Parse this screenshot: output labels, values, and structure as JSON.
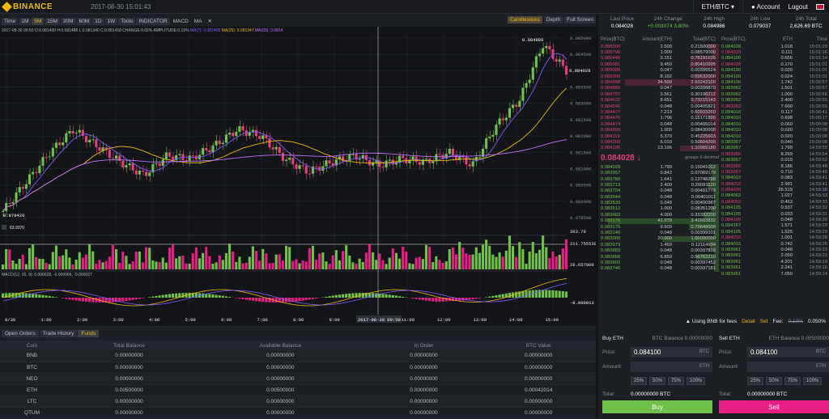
{
  "header": {
    "brand": "BINANCE",
    "clock": "2017-08-30 15:01:43",
    "pair": "ETH/BTC",
    "account": "Account",
    "logout": "Logout"
  },
  "toolbar": {
    "items": [
      "Time",
      "1M",
      "5M",
      "15M",
      "30M",
      "60M",
      "1D",
      "1W",
      "Tools",
      "INDICATOR",
      "MACD",
      "MA",
      "✕"
    ],
    "active": "5M",
    "right": [
      "Candlesticks",
      "Depth",
      "Full Screen"
    ]
  },
  "chart": {
    "ohlc_line": "2017-08-30 09:50  O:0.081400 H:0.081486 L:0.081340 C:0.081418 CHANGE:0.02% AMPLITUDE:0.15%",
    "ma7": "MA(7): 0.081408",
    "ma25": "MA(25): 0.081347",
    "ma99": "MA(99): 0.0814",
    "price_ticks": [
      "0.085000",
      "0.084500",
      "0.084000",
      "0.083500",
      "0.083000",
      "0.082500",
      "0.082000",
      "0.081500",
      "0.081000",
      "0.080500",
      "0.080000",
      "0.079500"
    ],
    "high_label": "0.084986",
    "low_label": "0.079420",
    "current_label": "0.084028",
    "vol_ticks": [
      "393.79",
      "211.755538",
      "26.657000"
    ],
    "vol_left": "63.9370",
    "macd_label": "MACD(12, 26, 9): 0.000028, -0.000065, -0.000037",
    "macd_tick": "-0.000013",
    "time_ticks": [
      "8/30",
      "1:00",
      "2:00",
      "3:00",
      "4:00",
      "5:00",
      "6:00",
      "7:00",
      "8:00",
      "9:00",
      "10:00",
      "11:00",
      "12:00",
      "13:00",
      "14:00",
      "15:00"
    ],
    "crosshair_time": "2017-08-30 09:50"
  },
  "chart_data": {
    "type": "candlestick",
    "x_range": [
      "2017-08-29 23:30",
      "2017-08-30 15:05"
    ],
    "ylim": [
      0.0794,
      0.0851
    ],
    "close_approx": [
      0.0797,
      0.0806,
      0.0815,
      0.0822,
      0.0817,
      0.0812,
      0.0808,
      0.0814,
      0.0813,
      0.0817,
      0.0822,
      0.082,
      0.0813,
      0.0809,
      0.0812,
      0.0814,
      0.0811,
      0.0813,
      0.0812,
      0.0815,
      0.0811,
      0.0823,
      0.0831,
      0.0848,
      0.084
    ]
  },
  "bottom_tabs": [
    "Open Orders",
    "Trade History",
    "Funds"
  ],
  "funds": {
    "headers": [
      "Coin",
      "Total Balance",
      "Available Balance",
      "In Order",
      "BTC Value"
    ],
    "rows": [
      [
        "BNB",
        "0.00000000",
        "0.00000000",
        "0.00000000",
        "0.00000000"
      ],
      [
        "BTC",
        "0.00000000",
        "0.00000000",
        "0.00000000",
        "0.00000000"
      ],
      [
        "NEO",
        "0.00000000",
        "0.00000000",
        "0.00000000",
        "0.00000000"
      ],
      [
        "ETH",
        "0.00500000",
        "0.00500000",
        "0.00000000",
        "0.00042014"
      ],
      [
        "LTC",
        "0.00000000",
        "0.00000000",
        "0.00000000",
        "0.00000000"
      ],
      [
        "QTUM",
        "0.00000000",
        "0.00000000",
        "0.00000000",
        "0.00000000"
      ]
    ]
  },
  "ticker": [
    {
      "l": "Last Price",
      "v": "0.084028"
    },
    {
      "l": "24h Change",
      "v": "+0.003074 3.80%"
    },
    {
      "l": "24h High",
      "v": "0.084986"
    },
    {
      "l": "24h Low",
      "v": "0.079037"
    },
    {
      "l": "24h Total",
      "v": "2,626.69 BTC"
    }
  ],
  "orderbook": {
    "headers": [
      "Price(BTC)",
      "Amount(ETH)",
      "Total(BTC)"
    ],
    "asks": [
      [
        "0.086000",
        "2.500",
        "0.21500000"
      ],
      [
        "0.085790",
        "1.000",
        "0.08579000"
      ],
      [
        "0.085446",
        "9.151",
        "0.78191635"
      ],
      [
        "0.085081",
        "9.450",
        "0.80410995"
      ],
      [
        "0.085005",
        "0.047",
        "0.00399524"
      ],
      [
        "0.085000",
        "8.192",
        "0.69632000"
      ],
      [
        "0.084998",
        "34.500",
        "2.93243100"
      ],
      [
        "0.084866",
        "0.047",
        "0.00398870"
      ],
      [
        "0.084797",
        "3.561",
        "0.30196212"
      ],
      [
        "0.084632",
        "8.651",
        "0.73215143"
      ],
      [
        "0.084546",
        "0.048",
        "0.00405821"
      ],
      [
        "0.084477",
        "7.213",
        "0.60933260"
      ],
      [
        "0.084476",
        "1.796",
        "0.15171890"
      ],
      [
        "0.084474",
        "0.048",
        "0.00405014"
      ],
      [
        "0.084300",
        "1.000",
        "0.08430000"
      ],
      [
        "0.084119",
        "5.370",
        "0.45225603"
      ],
      [
        "0.084200",
        "6.010",
        "0.50604200"
      ],
      [
        "0.084106",
        "13.196",
        "1.10989180"
      ]
    ],
    "last": "0.084028 ↓",
    "groups": "groups 6 decimal",
    "bids": [
      [
        "0.084028",
        "1.790",
        "0.15041012"
      ],
      [
        "0.083957",
        "0.842",
        "0.07069179"
      ],
      [
        "0.083780",
        "1.641",
        "0.13748298"
      ],
      [
        "0.083713",
        "2.400",
        "0.20091120"
      ],
      [
        "0.083704",
        "0.048",
        "0.00401779"
      ],
      [
        "0.083544",
        "0.048",
        "0.00401011"
      ],
      [
        "0.083539",
        "0.048",
        "0.00400987"
      ],
      [
        "0.083512",
        "1.000",
        "0.08351200"
      ],
      [
        "0.083483",
        "4.000",
        "0.33393200"
      ],
      [
        "0.083176",
        "41.070",
        "3.41603832"
      ],
      [
        "0.083175",
        "9.600",
        "0.79848000"
      ],
      [
        "0.083146",
        "0.048",
        "0.00399101"
      ],
      [
        "0.083000",
        "20.000",
        "1.66000000"
      ],
      [
        "0.082979",
        "1.460",
        "0.12114934"
      ],
      [
        "0.082883",
        "0.048",
        "0.00397838"
      ],
      [
        "0.082866",
        "6.850",
        "0.56763210"
      ],
      [
        "0.082802",
        "0.048",
        "0.00397452"
      ],
      [
        "0.082746",
        "0.048",
        "0.00397181"
      ]
    ]
  },
  "trades": {
    "headers": [
      "Price(BTC)",
      "ETH",
      "Time"
    ],
    "rows": [
      [
        "0.084028",
        "1.018",
        "15:01:29"
      ],
      [
        "0.084028",
        "0.111",
        "15:01:16"
      ],
      [
        "0.084100",
        "0.656",
        "15:01:14"
      ],
      [
        "0.084028",
        "0.170",
        "15:01:01"
      ],
      [
        "0.084100",
        "0.020",
        "15:01:01"
      ],
      [
        "0.084100",
        "0.024",
        "15:01:01"
      ],
      [
        "0.084100",
        "1.742",
        "15:00:57"
      ],
      [
        "0.083962",
        "1.501",
        "15:00:57"
      ],
      [
        "0.083962",
        "1.000",
        "15:00:56"
      ],
      [
        "0.083962",
        "2.400",
        "15:00:55"
      ],
      [
        "0.083962",
        "7.600",
        "15:00:55"
      ],
      [
        "0.084010",
        "0.117",
        "15:00:41"
      ],
      [
        "0.084010",
        "0.698",
        "15:00:17"
      ],
      [
        "0.084010",
        "0.060",
        "15:00:08"
      ],
      [
        "0.084010",
        "0.020",
        "15:00:08"
      ],
      [
        "0.084010",
        "0.020",
        "15:00:08"
      ],
      [
        "0.083957",
        "0.040",
        "15:00:08"
      ],
      [
        "0.083957",
        "1.799",
        "14:59:55"
      ],
      [
        "0.083956",
        "8.269",
        "14:59:54"
      ],
      [
        "0.083957",
        "0.019",
        "14:59:52"
      ],
      [
        "0.083956",
        "8.186",
        "14:59:48"
      ],
      [
        "0.083957",
        "0.710",
        "14:59:45"
      ],
      [
        "0.084010",
        "0.083",
        "14:59:41"
      ],
      [
        "0.084010",
        "2.991",
        "14:59:41"
      ],
      [
        "0.084030",
        "26.519",
        "14:59:38"
      ],
      [
        "0.084052",
        "1.027",
        "14:59:33"
      ],
      [
        "0.084052",
        "0.463",
        "14:59:33"
      ],
      [
        "0.084105",
        "0.537",
        "14:59:32"
      ],
      [
        "0.084105",
        "0.033",
        "14:59:31"
      ],
      [
        "0.084105",
        "0.048",
        "14:59:30"
      ],
      [
        "0.084167",
        "1.571",
        "14:59:29"
      ],
      [
        "0.084105",
        "1.525",
        "14:59:29"
      ],
      [
        "0.084010",
        "1.001",
        "14:59:28"
      ],
      [
        "0.084015",
        "0.742",
        "14:59:26"
      ],
      [
        "0.083961",
        "0.048",
        "14:59:23"
      ],
      [
        "0.083961",
        "2.050",
        "14:59:22"
      ],
      [
        "0.083961",
        "4.201",
        "14:59:19"
      ],
      [
        "0.083961",
        "2.241",
        "14:59:16"
      ],
      [
        "0.083961",
        "7.050",
        "14:59:14"
      ]
    ]
  },
  "fees": {
    "bnb": "Using BNB for fees",
    "detail": "Detail",
    "set": "Set",
    "fee_label": "Fee:",
    "fee_old": "0.10%",
    "fee_new": "0.050%"
  },
  "buy": {
    "title": "Buy ETH",
    "balance": "BTC Balance 0.00000000",
    "price_label": "Price:",
    "price": "0.084100",
    "price_unit": "BTC",
    "amount_label": "Amount:",
    "amount_unit": "ETH",
    "pcts": [
      "25%",
      "50%",
      "75%",
      "100%"
    ],
    "total_label": "Total:",
    "total": "0.00000000 BTC",
    "button": "Buy"
  },
  "sell": {
    "title": "Sell ETH",
    "balance": "ETH Balance 0.00500000",
    "price_label": "Price:",
    "price": "0.084100",
    "price_unit": "BTC",
    "amount_label": "Amount:",
    "amount_unit": "ETH",
    "pcts": [
      "25%",
      "50%",
      "75%",
      "100%"
    ],
    "total_label": "Total:",
    "total": "0.00000000 BTC",
    "button": "Sell"
  }
}
